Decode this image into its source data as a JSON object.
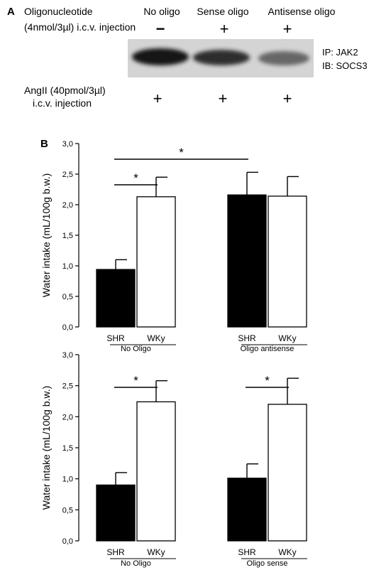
{
  "panel_a": {
    "letter": "A",
    "oligo_label_line1": "Oligonucleotide",
    "oligo_label_line2": "(4nmol/3µl) i.c.v. injection",
    "columns": [
      "No oligo",
      "Sense oligo",
      "Antisense oligo"
    ],
    "oligo_signs": [
      "−",
      "+",
      "+"
    ],
    "blot_label_ip": "IP: JAK2",
    "blot_label_ib": "IB: SOCS3",
    "angii_label_line1": "AngII (40pmol/3µl)",
    "angii_label_line2": "i.c.v. injection",
    "angii_signs": [
      "+",
      "+",
      "+"
    ],
    "band_intensity": [
      1.0,
      0.85,
      0.55
    ]
  },
  "panel_b": {
    "letter": "B"
  },
  "chart_data": [
    {
      "type": "bar",
      "ylabel": "Water intake (mL/100g b.w.)",
      "ylim": [
        0,
        3.0
      ],
      "yticks": [
        "0,0",
        "0,5",
        "1,0",
        "1,5",
        "2,0",
        "2,5",
        "3,0"
      ],
      "categories": [
        "SHR",
        "WKy",
        "SHR",
        "WKy"
      ],
      "groups": [
        "No Oligo",
        "Oligo antisense"
      ],
      "values": [
        0.94,
        2.13,
        2.16,
        2.14
      ],
      "errors": [
        0.16,
        0.32,
        0.37,
        0.32
      ],
      "fills": [
        "#000000",
        "#ffffff",
        "#000000",
        "#ffffff"
      ],
      "significance": [
        {
          "from": 0,
          "to": 1,
          "label": "*"
        },
        {
          "from": 0,
          "to": 2,
          "label": "*"
        }
      ]
    },
    {
      "type": "bar",
      "ylabel": "Water intake (mL/100g b.w.)",
      "ylim": [
        0,
        3.0
      ],
      "yticks": [
        "0,0",
        "0,5",
        "1,0",
        "1,5",
        "2,0",
        "2,5",
        "3,0"
      ],
      "categories": [
        "SHR",
        "WKy",
        "SHR",
        "WKy"
      ],
      "groups": [
        "No Oligo",
        "Oligo sense"
      ],
      "values": [
        0.9,
        2.24,
        1.01,
        2.2
      ],
      "errors": [
        0.2,
        0.34,
        0.23,
        0.42
      ],
      "fills": [
        "#000000",
        "#ffffff",
        "#000000",
        "#ffffff"
      ],
      "significance": [
        {
          "from": 0,
          "to": 1,
          "label": "*"
        },
        {
          "from": 2,
          "to": 3,
          "label": "*"
        }
      ]
    }
  ]
}
